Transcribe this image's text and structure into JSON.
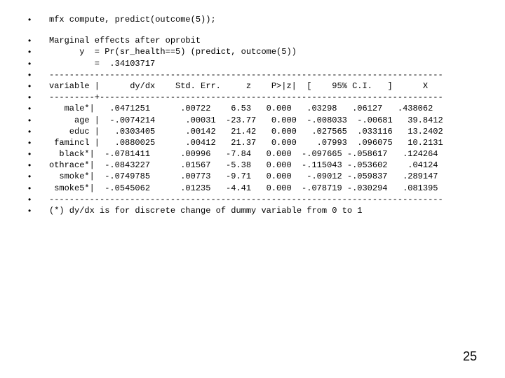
{
  "bullet_char": "•",
  "page_number": "25",
  "lines": [
    "mfx compute, predict(outcome(5));",
    "",
    "Marginal effects after oprobit",
    "      y  = Pr(sr_health==5) (predict, outcome(5))",
    "         =  .34103717",
    "------------------------------------------------------------------------------",
    "variable |      dy/dx    Std. Err.     z    P>|z|  [    95% C.I.   ]      X",
    "---------+--------------------------------------------------------------------",
    "   male*|   .0471251      .00722    6.53   0.000   .03298   .06127   .438062",
    "     age |  -.0074214      .00031  -23.77   0.000  -.008033  -.00681   39.8412",
    "    educ |   .0303405      .00142   21.42   0.000   .027565  .033116   13.2402",
    " famincl |   .0880025      .00412   21.37   0.000    .07993  .096075   10.2131",
    "  black*|  -.0781411      .00996   -7.84   0.000  -.097665 -.058617   .124264",
    "othrace*|  -.0843227      .01567   -5.38   0.000  -.115043 -.053602    .04124",
    "  smoke*|  -.0749785      .00773   -9.71   0.000   -.09012 -.059837   .289147",
    " smoke5*|  -.0545062      .01235   -4.41   0.000  -.078719 -.030294   .081395",
    "------------------------------------------------------------------------------",
    "(*) dy/dx is for discrete change of dummy variable from 0 to 1"
  ]
}
